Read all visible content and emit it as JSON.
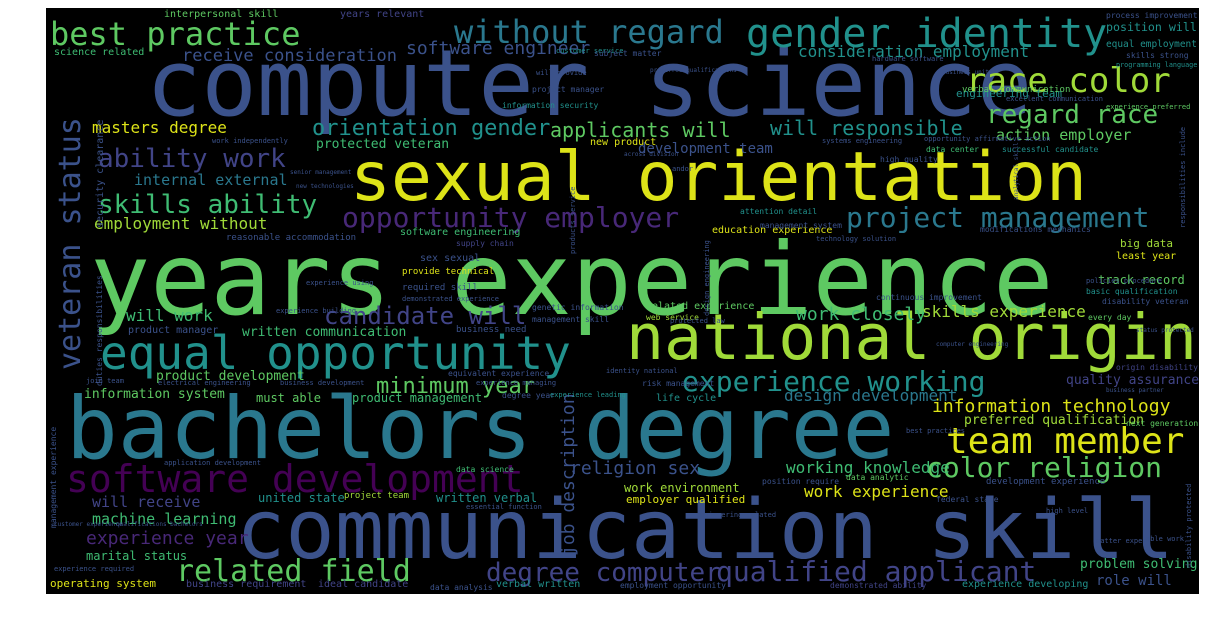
{
  "palette": {
    "yellow": "#dde318",
    "lime": "#a0da39",
    "green": "#5ec962",
    "green2": "#3fbc73",
    "teal": "#21918c",
    "teal2": "#2a788e",
    "slate": "#3b528b",
    "slate2": "#414487",
    "purple": "#482878",
    "violet": "#440154"
  },
  "words": [
    {
      "id": "years-experience",
      "text": "years experience",
      "color": "#5ec962"
    },
    {
      "id": "computer-science",
      "text": "computer science",
      "color": "#3b528b"
    },
    {
      "id": "bachelors-degree",
      "text": "bachelors degree",
      "color": "#2a788e"
    },
    {
      "id": "communication-skill",
      "text": "communication skill",
      "color": "#3b528b"
    },
    {
      "id": "sexual-orientation",
      "text": "sexual orientation",
      "color": "#dde318"
    },
    {
      "id": "national-origin",
      "text": "national origin",
      "color": "#a0da39"
    },
    {
      "id": "equal-opportunity",
      "text": "equal opportunity",
      "color": "#21918c"
    },
    {
      "id": "gender-identity",
      "text": "gender identity",
      "color": "#21918c"
    },
    {
      "id": "software-development",
      "text": "software development",
      "color": "#440154"
    },
    {
      "id": "best-practice",
      "text": "best practice",
      "color": "#5ec962"
    },
    {
      "id": "without-regard",
      "text": "without regard",
      "color": "#2a788e"
    },
    {
      "id": "race-color",
      "text": "race color",
      "color": "#a0da39"
    },
    {
      "id": "regard-race",
      "text": "regard race",
      "color": "#5ec962"
    },
    {
      "id": "veteran-status",
      "text": "veteran status",
      "color": "#3b528b"
    },
    {
      "id": "team-member",
      "text": "team member",
      "color": "#dde318"
    },
    {
      "id": "color-religion",
      "text": "color religion",
      "color": "#5ec962"
    },
    {
      "id": "related-field",
      "text": "related field",
      "color": "#5ec962"
    },
    {
      "id": "degree-computer",
      "text": "degree computer",
      "color": "#414487"
    },
    {
      "id": "qualified-applicant",
      "text": "qualified applicant",
      "color": "#414487"
    },
    {
      "id": "project-management",
      "text": "project management",
      "color": "#2a788e"
    },
    {
      "id": "opportunity-employer",
      "text": "opportunity employer",
      "color": "#482878"
    },
    {
      "id": "experience-working",
      "text": "experience working",
      "color": "#21918c"
    },
    {
      "id": "ability-work",
      "text": "ability work",
      "color": "#414487"
    },
    {
      "id": "skills-ability",
      "text": "skills ability",
      "color": "#3fbc73"
    },
    {
      "id": "orientation-gender",
      "text": "orientation gender",
      "color": "#21918c"
    },
    {
      "id": "candidate-will",
      "text": "candidate will",
      "color": "#414487"
    },
    {
      "id": "information-technology",
      "text": "information technology",
      "color": "#dde318"
    },
    {
      "id": "minimum-year",
      "text": "minimum year",
      "color": "#5ec962"
    },
    {
      "id": "applicants-will",
      "text": "applicants will",
      "color": "#5ec962"
    },
    {
      "id": "will-responsible",
      "text": "will responsible",
      "color": "#21918c"
    },
    {
      "id": "software-engineer",
      "text": "software engineer",
      "color": "#3b528b"
    },
    {
      "id": "receive-consideration",
      "text": "receive consideration",
      "color": "#3b528b"
    },
    {
      "id": "consideration-employment",
      "text": "consideration employment",
      "color": "#21918c"
    },
    {
      "id": "religion-sex",
      "text": "religion sex",
      "color": "#3b528b"
    },
    {
      "id": "experience-year",
      "text": "experience year",
      "color": "#482878"
    },
    {
      "id": "masters-degree",
      "text": "masters degree",
      "color": "#dde318"
    },
    {
      "id": "employment-without",
      "text": "employment without",
      "color": "#a0da39"
    },
    {
      "id": "internal-external",
      "text": "internal external",
      "color": "#2a788e"
    },
    {
      "id": "job-description",
      "text": "job description",
      "color": "#3b528b"
    },
    {
      "id": "will-work",
      "text": "will work",
      "color": "#3fbc73"
    },
    {
      "id": "work-closely",
      "text": "work closely",
      "color": "#3fbc73"
    },
    {
      "id": "skills-experience",
      "text": "skills experience",
      "color": "#a0da39"
    },
    {
      "id": "design-development",
      "text": "design development",
      "color": "#2a788e"
    },
    {
      "id": "working-knowledge",
      "text": "working knowledge",
      "color": "#3fbc73"
    },
    {
      "id": "work-experience",
      "text": "work experience",
      "color": "#dde318"
    },
    {
      "id": "machine-learning",
      "text": "machine learning",
      "color": "#3fbc73"
    },
    {
      "id": "will-receive",
      "text": "will receive",
      "color": "#414487"
    },
    {
      "id": "information-system",
      "text": "information system",
      "color": "#5ec962"
    },
    {
      "id": "product-development",
      "text": "product development",
      "color": "#5ec962"
    },
    {
      "id": "written-communication",
      "text": "written communication",
      "color": "#3fbc73"
    },
    {
      "id": "protected-veteran",
      "text": "protected veteran",
      "color": "#3fbc73"
    },
    {
      "id": "development-team",
      "text": "development team",
      "color": "#3b528b"
    },
    {
      "id": "action-employer",
      "text": "action employer",
      "color": "#5ec962"
    },
    {
      "id": "quality-assurance",
      "text": "quality assurance",
      "color": "#414487"
    },
    {
      "id": "preferred-qualification",
      "text": "preferred qualification",
      "color": "#a0da39"
    },
    {
      "id": "problem-solving",
      "text": "problem solving",
      "color": "#3fbc73"
    },
    {
      "id": "role-will",
      "text": "role will",
      "color": "#3b528b"
    },
    {
      "id": "marital-status",
      "text": "marital status",
      "color": "#3fbc73"
    },
    {
      "id": "operating-system",
      "text": "operating system",
      "color": "#dde318"
    },
    {
      "id": "united-state",
      "text": "united state",
      "color": "#21918c"
    },
    {
      "id": "written-verbal",
      "text": "written verbal",
      "color": "#21918c"
    },
    {
      "id": "work-environment",
      "text": "work environment",
      "color": "#a0da39"
    },
    {
      "id": "employer-qualified",
      "text": "employer qualified",
      "color": "#dde318"
    },
    {
      "id": "must-able",
      "text": "must able",
      "color": "#5ec962"
    },
    {
      "id": "product-management",
      "text": "product management",
      "color": "#3fbc73"
    },
    {
      "id": "position-will",
      "text": "position will",
      "color": "#21918c"
    },
    {
      "id": "equal-employment",
      "text": "equal employment",
      "color": "#21918c"
    },
    {
      "id": "engineering-team",
      "text": "engineering team",
      "color": "#21918c"
    },
    {
      "id": "track-record",
      "text": "track record",
      "color": "#5ec962"
    },
    {
      "id": "big-data",
      "text": "big data",
      "color": "#a0da39"
    },
    {
      "id": "least-year",
      "text": "least year",
      "color": "#dde318"
    },
    {
      "id": "business-requirement",
      "text": "business requirement",
      "color": "#414487"
    },
    {
      "id": "ideal-candidate",
      "text": "ideal candidate",
      "color": "#414487"
    },
    {
      "id": "verbal-written",
      "text": "verbal written",
      "color": "#21918c"
    },
    {
      "id": "interpersonal-skill",
      "text": "interpersonal skill",
      "color": "#5ec962"
    },
    {
      "id": "years-relevant",
      "text": "years relevant",
      "color": "#414487"
    },
    {
      "id": "science-related",
      "text": "science related",
      "color": "#3fbc73"
    },
    {
      "id": "security-clearance",
      "text": "security clearance",
      "color": "#3b528b"
    },
    {
      "id": "software-engineering",
      "text": "software engineering",
      "color": "#3fbc73"
    },
    {
      "id": "education-experience",
      "text": "education experience",
      "color": "#dde318"
    },
    {
      "id": "related-experience",
      "text": "related experience",
      "color": "#5ec962"
    },
    {
      "id": "new-product",
      "text": "new product",
      "color": "#dde318"
    },
    {
      "id": "sex-sexual",
      "text": "sex sexual",
      "color": "#3b528b"
    },
    {
      "id": "provide-technical",
      "text": "provide technical",
      "color": "#dde318"
    },
    {
      "id": "required-skill",
      "text": "required skill",
      "color": "#3b528b"
    },
    {
      "id": "product-manager",
      "text": "product manager",
      "color": "#3b528b"
    },
    {
      "id": "business-need",
      "text": "business need",
      "color": "#3b528b"
    },
    {
      "id": "experience-developing",
      "text": "experience developing",
      "color": "#21918c"
    },
    {
      "id": "development-experience",
      "text": "development experience",
      "color": "#3b528b"
    },
    {
      "id": "project-team",
      "text": "project team",
      "color": "#a0da39"
    },
    {
      "id": "data-science",
      "text": "data science",
      "color": "#3fbc73"
    },
    {
      "id": "verbal-communication",
      "text": "verbal communication",
      "color": "#5ec962"
    },
    {
      "id": "information-security",
      "text": "information security",
      "color": "#21918c"
    },
    {
      "id": "project-manager",
      "text": "project manager",
      "color": "#3b528b"
    },
    {
      "id": "risk-management",
      "text": "risk management",
      "color": "#3b528b"
    },
    {
      "id": "life-cycle",
      "text": "life cycle",
      "color": "#21918c"
    },
    {
      "id": "process-improvement",
      "text": "process improvement",
      "color": "#3b528b"
    },
    {
      "id": "reasonable-accommodation",
      "text": "reasonable accommodation",
      "color": "#3b528b"
    },
    {
      "id": "genetic-information",
      "text": "genetic information",
      "color": "#3b528b"
    },
    {
      "id": "disability-veteran",
      "text": "disability veteran",
      "color": "#3b528b"
    },
    {
      "id": "basic-qualification",
      "text": "basic qualification",
      "color": "#21918c"
    },
    {
      "id": "skills-strong",
      "text": "skills strong",
      "color": "#3b528b"
    },
    {
      "id": "successful-candidate",
      "text": "successful candidate",
      "color": "#21918c"
    },
    {
      "id": "web-service",
      "text": "web service",
      "color": "#a0da39"
    },
    {
      "id": "supply-chain",
      "text": "supply chain",
      "color": "#414487"
    },
    {
      "id": "high-quality",
      "text": "high quality",
      "color": "#3b528b"
    },
    {
      "id": "data-center",
      "text": "data center",
      "color": "#3fbc73"
    },
    {
      "id": "data-analytic",
      "text": "data analytic",
      "color": "#5ec962"
    },
    {
      "id": "attention-detail",
      "text": "attention detail",
      "color": "#21918c"
    },
    {
      "id": "management-system",
      "text": "management system",
      "color": "#3b528b"
    },
    {
      "id": "position-require",
      "text": "position require",
      "color": "#3b528b"
    },
    {
      "id": "every-day",
      "text": "every day",
      "color": "#5ec962"
    },
    {
      "id": "origin-disability",
      "text": "origin disability",
      "color": "#414487"
    },
    {
      "id": "experience-preferred",
      "text": "experience preferred",
      "color": "#5ec962"
    },
    {
      "id": "continuous-improvement",
      "text": "continuous improvement",
      "color": "#3b528b"
    },
    {
      "id": "management-skill",
      "text": "management skill",
      "color": "#3b528b"
    },
    {
      "id": "equivalent-experience",
      "text": "equivalent experience",
      "color": "#3b528b"
    },
    {
      "id": "degree-year",
      "text": "degree year",
      "color": "#3b528b"
    },
    {
      "id": "demonstrated-ability",
      "text": "demonstrated ability",
      "color": "#414487"
    },
    {
      "id": "employment-opportunity",
      "text": "employment opportunity",
      "color": "#3b528b"
    },
    {
      "id": "data-analysis",
      "text": "data analysis",
      "color": "#3b528b"
    },
    {
      "id": "federal-state",
      "text": "federal state",
      "color": "#3b528b"
    },
    {
      "id": "next-generation",
      "text": "next generation",
      "color": "#5ec962"
    },
    {
      "id": "application-development",
      "text": "application development",
      "color": "#3b528b"
    },
    {
      "id": "join-team",
      "text": "join team",
      "color": "#3b528b"
    },
    {
      "id": "electrical-engineering",
      "text": "electrical engineering",
      "color": "#3b528b"
    },
    {
      "id": "business-development",
      "text": "business development",
      "color": "#3b528b"
    },
    {
      "id": "work-independently",
      "text": "work independently",
      "color": "#3b528b"
    },
    {
      "id": "hardware-software",
      "text": "hardware software",
      "color": "#3b528b"
    },
    {
      "id": "technology-solution",
      "text": "technology solution",
      "color": "#3b528b"
    },
    {
      "id": "customer-service",
      "text": "customer service",
      "color": "#21918c"
    },
    {
      "id": "programming-language",
      "text": "programming language",
      "color": "#21918c"
    },
    {
      "id": "excellent-communication",
      "text": "excellent communication",
      "color": "#3b528b"
    },
    {
      "id": "experience-using",
      "text": "experience using",
      "color": "#3b528b"
    },
    {
      "id": "demonstrated-experience",
      "text": "demonstrated experience",
      "color": "#3b528b"
    },
    {
      "id": "andor",
      "text": "andor",
      "color": "#3b528b"
    },
    {
      "id": "experience-building",
      "text": "experience building",
      "color": "#3b528b"
    },
    {
      "id": "essential-function",
      "text": "essential function",
      "color": "#3b528b"
    },
    {
      "id": "policies-procedure",
      "text": "policies procedure",
      "color": "#3b528b"
    },
    {
      "id": "high-level",
      "text": "high level",
      "color": "#3b528b"
    },
    {
      "id": "experience-leading",
      "text": "experience leading",
      "color": "#21918c"
    },
    {
      "id": "matter-expert",
      "text": "matter expert",
      "color": "#3b528b"
    },
    {
      "id": "management-experience",
      "text": "management experience",
      "color": "#3b528b"
    },
    {
      "id": "duties-responsibilities",
      "text": "duties responsibilities",
      "color": "#3b528b"
    },
    {
      "id": "experience-required",
      "text": "experience required",
      "color": "#3b528b"
    },
    {
      "id": "customer-experience",
      "text": "customer experience",
      "color": "#3b528b"
    },
    {
      "id": "qualifications-bachelors",
      "text": "qualifications bachelors",
      "color": "#3b528b"
    },
    {
      "id": "senior-management",
      "text": "senior management",
      "color": "#3b528b"
    },
    {
      "id": "new-technologies",
      "text": "new technologies",
      "color": "#3b528b"
    },
    {
      "id": "opportunity-affirmative-action",
      "text": "opportunity affirmative action",
      "color": "#3b528b"
    },
    {
      "id": "responsibilities-include",
      "text": "responsibilities include",
      "color": "#3b528b"
    },
    {
      "id": "disability-protected",
      "text": "disability protected",
      "color": "#3b528b"
    },
    {
      "id": "products-service",
      "text": "products service",
      "color": "#3b528b"
    },
    {
      "id": "design-engineering",
      "text": "design engineering",
      "color": "#3b528b"
    },
    {
      "id": "modifications-mechanics",
      "text": "modifications mechanics",
      "color": "#3b528b"
    },
    {
      "id": "across-division",
      "text": "across division",
      "color": "#3b528b"
    },
    {
      "id": "subject-matter",
      "text": "subject matter",
      "color": "#3b528b"
    },
    {
      "id": "identity-national",
      "text": "identity national",
      "color": "#3b528b"
    },
    {
      "id": "systems-engineering",
      "text": "systems engineering",
      "color": "#3b528b"
    },
    {
      "id": "analytical-skill",
      "text": "analytical skill",
      "color": "#3b528b"
    },
    {
      "id": "able-work",
      "text": "able work",
      "color": "#3b528b"
    },
    {
      "id": "best-practices",
      "text": "best practices",
      "color": "#3b528b"
    },
    {
      "id": "business-partner",
      "text": "business partner",
      "color": "#3b528b"
    },
    {
      "id": "engineering-related",
      "text": "engineering related",
      "color": "#3b528b"
    },
    {
      "id": "protected-law",
      "text": "protected law",
      "color": "#3b528b"
    },
    {
      "id": "will-provide",
      "text": "will provide",
      "color": "#3b528b"
    },
    {
      "id": "preferred-qualifications",
      "text": "preferred qualifications",
      "color": "#3b528b"
    },
    {
      "id": "experience-managing",
      "text": "experience managing",
      "color": "#3b528b"
    },
    {
      "id": "computer-engineering",
      "text": "computer engineering",
      "color": "#3b528b"
    },
    {
      "id": "business-unit",
      "text": "business unit",
      "color": "#3b528b"
    },
    {
      "id": "status-protected",
      "text": "status protected",
      "color": "#3b528b"
    }
  ]
}
